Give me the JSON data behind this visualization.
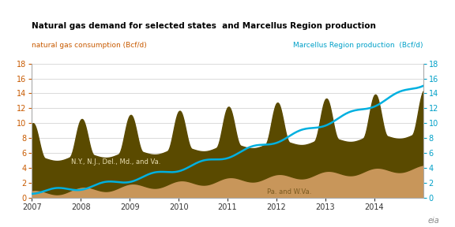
{
  "title": "Natural gas demand for selected states  and Marcellus Region production",
  "left_label": "natural gas consumption (Bcf/d)",
  "right_label": "Marcellus Region production  (Bcf/d)",
  "ylim": [
    0,
    18
  ],
  "background_color": "#ffffff",
  "area_color_dark": "#5a4a00",
  "area_color_light": "#c8965a",
  "line_color": "#00b0e0",
  "title_color": "#000000",
  "left_label_color": "#c85a00",
  "right_label_color": "#00a0c8",
  "annotation_ny": "N.Y., N.J., Del., Md., and Va.",
  "annotation_pa": "Pa. and W.Va.",
  "x_ticks": [
    2007,
    2008,
    2009,
    2010,
    2011,
    2012,
    2013,
    2014
  ],
  "yticks": [
    0,
    2,
    4,
    6,
    8,
    10,
    12,
    14,
    16,
    18
  ]
}
